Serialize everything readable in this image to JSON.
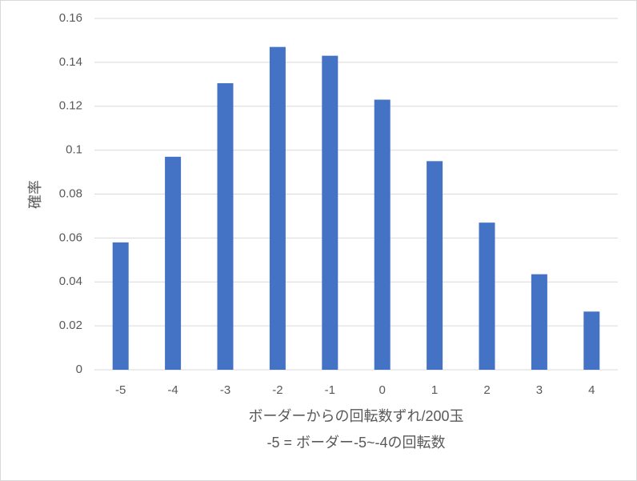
{
  "chart_data": {
    "type": "bar",
    "categories": [
      "-5",
      "-4",
      "-3",
      "-2",
      "-1",
      "0",
      "1",
      "2",
      "3",
      "4"
    ],
    "values": [
      0.058,
      0.097,
      0.1305,
      0.147,
      0.143,
      0.123,
      0.095,
      0.067,
      0.0435,
      0.0265
    ],
    "color": "#4472c4",
    "y_label": "確率",
    "x_label": [
      "ボーダーからの回転数ずれ/200玉",
      "-5 = ボーダー-5~-4の回転数"
    ],
    "ylim": [
      0,
      0.16
    ],
    "yticks": [
      0,
      0.02,
      0.04,
      0.06,
      0.08,
      0.1,
      0.12,
      0.14,
      0.16
    ],
    "grid": true
  }
}
